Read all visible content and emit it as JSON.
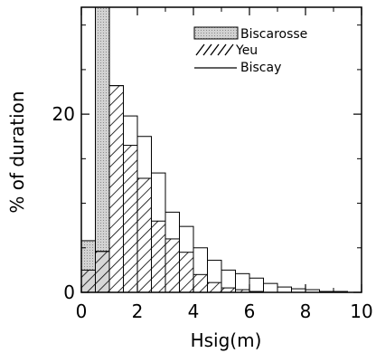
{
  "chart_data": {
    "type": "bar",
    "xlabel": "Hsig(m)",
    "ylabel": "% of duration",
    "xlim": [
      0,
      10
    ],
    "ylim": [
      0,
      32
    ],
    "x_ticks": [
      0,
      2,
      4,
      6,
      8,
      10
    ],
    "y_ticks": [
      0,
      20
    ],
    "bin_edges": [
      0,
      0.5,
      1.0,
      1.5,
      2.0,
      2.5,
      3.0,
      3.5,
      4.0,
      4.5,
      5.0,
      5.5,
      6.0,
      6.5,
      7.0,
      7.5,
      8.0,
      8.5,
      9.0,
      9.5,
      10.0
    ],
    "series": [
      {
        "name": "Biscarosse",
        "style": "shaded",
        "values": [
          5.8,
          32.0,
          23.0,
          15.0,
          8.6,
          4.2,
          1.6,
          1.0,
          0.6,
          0.2,
          0.1,
          0,
          0,
          0,
          0,
          0,
          0,
          0,
          0,
          0
        ]
      },
      {
        "name": "Yeu",
        "style": "hatched",
        "values": [
          2.5,
          4.6,
          23.2,
          16.5,
          12.8,
          8.0,
          6.0,
          4.5,
          2.0,
          1.1,
          0.5,
          0.3,
          0.1,
          0,
          0,
          0,
          0,
          0,
          0,
          0
        ]
      },
      {
        "name": "Biscay",
        "style": "outline",
        "values": [
          0,
          4.6,
          23.2,
          19.8,
          17.5,
          13.4,
          9.0,
          7.4,
          5.0,
          3.6,
          2.5,
          2.1,
          1.6,
          1.0,
          0.6,
          0.4,
          0.3,
          0.1,
          0.1,
          0
        ]
      }
    ],
    "legend": {
      "position": "top-right",
      "entries": [
        "Biscarosse",
        "Yeu",
        "Biscay"
      ]
    }
  },
  "colors": {
    "shaded_fill": "#cfcfcf",
    "line": "#000000"
  }
}
